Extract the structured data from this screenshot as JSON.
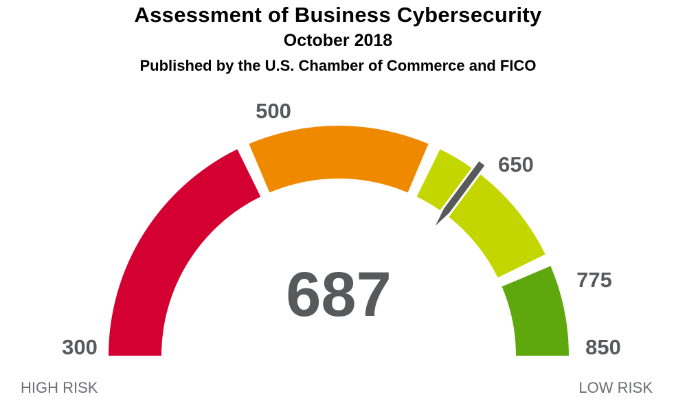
{
  "header": {
    "title": "Assessment of Business Cybersecurity",
    "date": "October 2018",
    "publisher": "Published by the U.S. Chamber of Commerce and FICO"
  },
  "chart_data": {
    "type": "gauge",
    "min": 300,
    "max": 850,
    "value": 687,
    "value_label": "687",
    "segments": [
      {
        "from": 300,
        "to": 500,
        "color": "#d50032"
      },
      {
        "from": 500,
        "to": 650,
        "color": "#ef8a00"
      },
      {
        "from": 650,
        "to": 775,
        "color": "#c4d600"
      },
      {
        "from": 775,
        "to": 850,
        "color": "#5ea70d"
      }
    ],
    "tick_labels": [
      "300",
      "500",
      "650",
      "775",
      "850"
    ],
    "left_label": "HIGH RISK",
    "right_label": "LOW RISK",
    "needle_color": "#58595b"
  }
}
